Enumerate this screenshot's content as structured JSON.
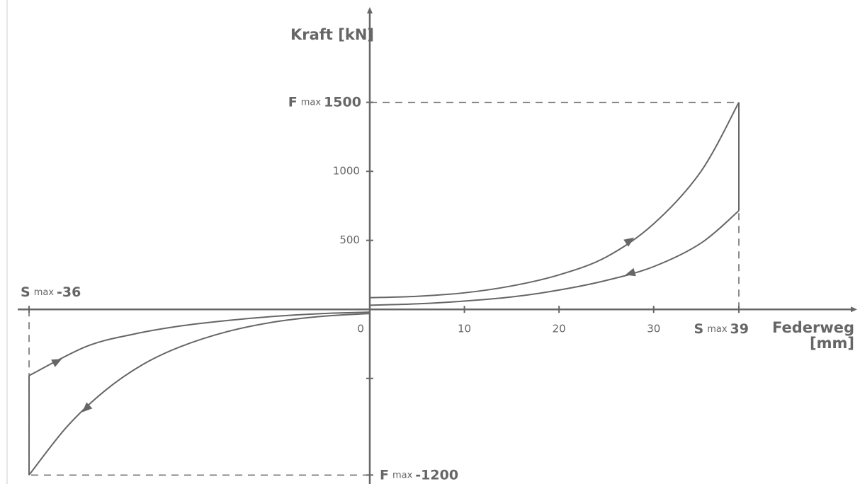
{
  "chart_data": {
    "type": "line",
    "ylabel": "Kraft [kN]",
    "xlabel": "Federweg [mm]",
    "color": "#666666",
    "xlim": [
      -37.2,
      51.5
    ],
    "ylim": [
      -1265,
      2190
    ],
    "xticks": [
      0,
      10,
      20,
      30
    ],
    "yticks": [
      {
        "value": -500,
        "label": null
      },
      500,
      1000
    ],
    "limits": [
      {
        "axis": "y",
        "prefix": "F",
        "sub": "max",
        "value": 1500
      },
      {
        "axis": "y",
        "prefix": "F",
        "sub": "max",
        "value": -1200
      },
      {
        "axis": "x",
        "prefix": "S",
        "sub": "max",
        "value": 39
      },
      {
        "axis": "x",
        "prefix": "S",
        "sub": "max",
        "value": -36
      }
    ],
    "series": [
      {
        "color": "#666666",
        "x": [
          0,
          5,
          10,
          15,
          20,
          25,
          30,
          35,
          39
        ],
        "values": [
          85,
          95,
          120,
          170,
          250,
          380,
          620,
          1000,
          1500
        ]
      },
      {
        "color": "#666666",
        "x": [
          0,
          5,
          10,
          15,
          20,
          25,
          30,
          35,
          39
        ],
        "values": [
          30,
          40,
          60,
          90,
          140,
          210,
          310,
          480,
          715
        ]
      },
      {
        "color": "#666666",
        "x": [
          -36,
          -30,
          -25,
          -20,
          -15,
          -10,
          -5,
          0
        ],
        "values": [
          -480,
          -270,
          -180,
          -120,
          -80,
          -50,
          -30,
          -20
        ]
      },
      {
        "color": "#666666",
        "x": [
          -36,
          -32,
          -28,
          -24,
          -20,
          -15,
          -10,
          -5,
          0
        ],
        "values": [
          -1200,
          -850,
          -590,
          -400,
          -270,
          -160,
          -90,
          -50,
          -30
        ]
      }
    ]
  }
}
